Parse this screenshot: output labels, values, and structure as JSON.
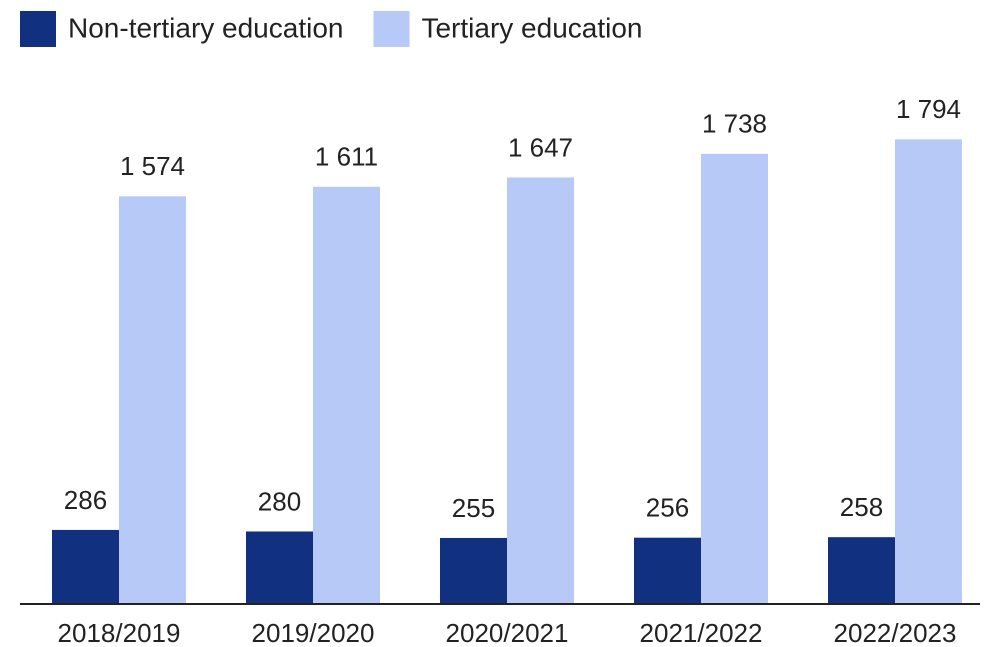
{
  "chart_data": {
    "type": "bar",
    "categories": [
      "2018/2019",
      "2019/2020",
      "2020/2021",
      "2021/2022",
      "2022/2023"
    ],
    "series": [
      {
        "name": "Non-tertiary education",
        "color": "#11307f",
        "values": [
          286,
          280,
          255,
          256,
          258
        ]
      },
      {
        "name": "Tertiary education",
        "color": "#b7c9f6",
        "values": [
          1574,
          1611,
          1647,
          1738,
          1794
        ],
        "value_labels": [
          "1 574",
          "1 611",
          "1 647",
          "1 738",
          "1 794"
        ]
      }
    ],
    "ylim": [
      0,
      2000
    ],
    "legend": "top-left"
  }
}
